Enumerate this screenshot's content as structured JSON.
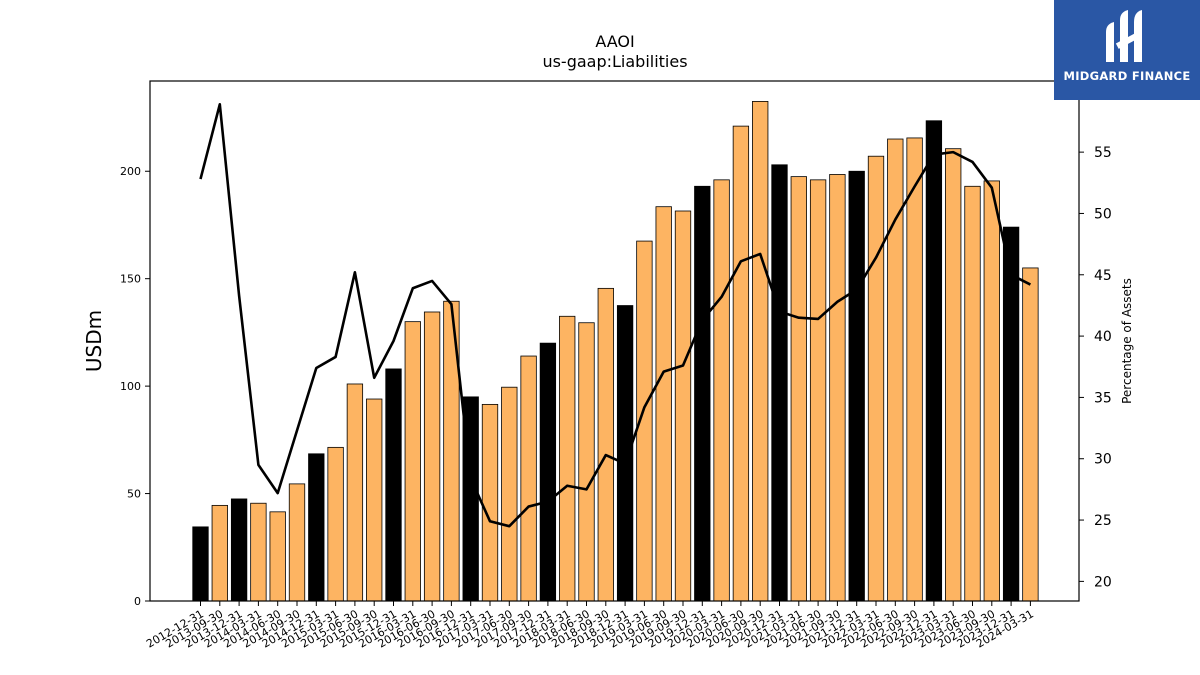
{
  "chart_data": {
    "type": "bar",
    "title": "AAOI",
    "subtitle": "us-gaap:Liabilities",
    "ylabel": "USDm",
    "y2label": "Percentage of Assets",
    "ylim": [
      0,
      242
    ],
    "y2lim": [
      18.4,
      60.8
    ],
    "yticks": [
      0,
      50,
      100,
      150,
      200
    ],
    "y2ticks": [
      20,
      25,
      30,
      35,
      40,
      45,
      50,
      55
    ],
    "categories": [
      "2012-12-31",
      "2013-09-30",
      "2013-12-31",
      "2014-03-31",
      "2014-06-30",
      "2014-09-30",
      "2014-12-31",
      "2015-03-31",
      "2015-06-30",
      "2015-09-30",
      "2015-12-31",
      "2016-03-31",
      "2016-06-30",
      "2016-09-30",
      "2016-12-31",
      "2017-03-31",
      "2017-06-30",
      "2017-09-30",
      "2017-12-31",
      "2018-03-31",
      "2018-06-30",
      "2018-09-30",
      "2018-12-31",
      "2019-03-31",
      "2019-06-30",
      "2019-09-30",
      "2019-12-31",
      "2020-03-31",
      "2020-06-30",
      "2020-09-30",
      "2020-12-31",
      "2021-03-31",
      "2021-06-30",
      "2021-09-30",
      "2021-12-31",
      "2022-03-31",
      "2022-06-30",
      "2022-09-30",
      "2022-12-31",
      "2023-03-31",
      "2023-06-30",
      "2023-09-30",
      "2023-12-31",
      "2024-03-31"
    ],
    "series": [
      {
        "kind": "bar",
        "values": [
          34.5,
          44.5,
          47.5,
          45.5,
          41.5,
          54.5,
          68.5,
          71.5,
          101,
          94,
          108,
          130,
          134.5,
          139.5,
          95,
          91.5,
          99.5,
          114,
          120,
          132.5,
          129.5,
          145.5,
          137.5,
          167.5,
          183.5,
          181.5,
          193,
          196,
          221,
          232.5,
          203,
          197.5,
          196,
          198.5,
          200,
          207,
          215,
          215.5,
          223.5,
          210.5,
          193,
          195.5,
          174,
          155
        ],
        "annual_color": "#000000",
        "quarterly_color": "#fdb462",
        "annual_flags": [
          1,
          0,
          1,
          0,
          0,
          0,
          1,
          0,
          0,
          0,
          1,
          0,
          0,
          0,
          1,
          0,
          0,
          0,
          1,
          0,
          0,
          0,
          1,
          0,
          0,
          0,
          1,
          0,
          0,
          0,
          1,
          0,
          0,
          0,
          1,
          0,
          0,
          0,
          1,
          0,
          0,
          0,
          1,
          0
        ]
      },
      {
        "kind": "line",
        "axis": "right",
        "color": "#000000",
        "values": [
          52.8,
          58.9,
          43.3,
          29.5,
          27.2,
          32.3,
          37.4,
          38.3,
          45.2,
          36.6,
          39.6,
          43.9,
          44.5,
          42.6,
          28.4,
          24.9,
          24.5,
          26.1,
          26.5,
          27.8,
          27.5,
          30.3,
          29.6,
          34.2,
          37.1,
          37.6,
          41.3,
          43.2,
          46.1,
          46.7,
          42.0,
          41.5,
          41.4,
          42.8,
          43.8,
          46.4,
          49.5,
          52.2,
          54.8,
          55.0,
          54.2,
          52.1,
          45.0,
          44.2
        ]
      }
    ]
  },
  "logo": {
    "text": "MIDGARD FINANCE"
  }
}
